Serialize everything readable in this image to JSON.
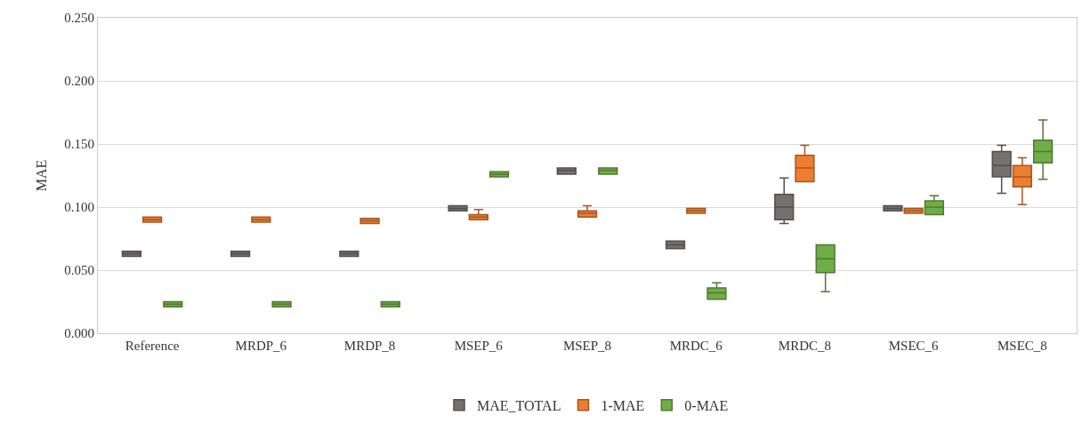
{
  "chart_data": {
    "type": "box",
    "ylabel": "MAE",
    "categories": [
      "Reference",
      "MRDP_6",
      "MRDP_8",
      "MSEP_6",
      "MSEP_8",
      "MRDC_6",
      "MRDC_8",
      "MSEC_6",
      "MSEC_8"
    ],
    "ylim": [
      0,
      0.25
    ],
    "yticks": [
      {
        "value": 0,
        "label": "0.000"
      },
      {
        "value": 0.05,
        "label": "0.050"
      },
      {
        "value": 0.1,
        "label": "0.100"
      },
      {
        "value": 0.15,
        "label": "0.150"
      },
      {
        "value": 0.2,
        "label": "0.200"
      },
      {
        "value": 0.25,
        "label": "0.250"
      }
    ],
    "grid": "y",
    "legend": "bottom",
    "series": [
      {
        "name": "MAE_TOTAL",
        "color": "#767171",
        "boxes": [
          {
            "low": 0.061,
            "q1": 0.061,
            "median": 0.063,
            "q3": 0.065,
            "high": 0.065
          },
          {
            "low": 0.061,
            "q1": 0.061,
            "median": 0.063,
            "q3": 0.065,
            "high": 0.065
          },
          {
            "low": 0.061,
            "q1": 0.061,
            "median": 0.063,
            "q3": 0.065,
            "high": 0.065
          },
          {
            "low": 0.097,
            "q1": 0.097,
            "median": 0.099,
            "q3": 0.101,
            "high": 0.101
          },
          {
            "low": 0.126,
            "q1": 0.126,
            "median": 0.129,
            "q3": 0.131,
            "high": 0.131
          },
          {
            "low": 0.067,
            "q1": 0.067,
            "median": 0.07,
            "q3": 0.073,
            "high": 0.073
          },
          {
            "low": 0.087,
            "q1": 0.09,
            "median": 0.1,
            "q3": 0.11,
            "high": 0.123
          },
          {
            "low": 0.097,
            "q1": 0.097,
            "median": 0.099,
            "q3": 0.101,
            "high": 0.101
          },
          {
            "low": 0.111,
            "q1": 0.124,
            "median": 0.133,
            "q3": 0.144,
            "high": 0.149
          }
        ]
      },
      {
        "name": "1-MAE",
        "color": "#ed7d31",
        "boxes": [
          {
            "low": 0.088,
            "q1": 0.088,
            "median": 0.09,
            "q3": 0.092,
            "high": 0.092
          },
          {
            "low": 0.088,
            "q1": 0.088,
            "median": 0.09,
            "q3": 0.092,
            "high": 0.092
          },
          {
            "low": 0.087,
            "q1": 0.087,
            "median": 0.089,
            "q3": 0.091,
            "high": 0.091
          },
          {
            "low": 0.09,
            "q1": 0.09,
            "median": 0.092,
            "q3": 0.094,
            "high": 0.098
          },
          {
            "low": 0.092,
            "q1": 0.092,
            "median": 0.095,
            "q3": 0.097,
            "high": 0.101
          },
          {
            "low": 0.095,
            "q1": 0.095,
            "median": 0.097,
            "q3": 0.099,
            "high": 0.099
          },
          {
            "low": 0.12,
            "q1": 0.12,
            "median": 0.131,
            "q3": 0.141,
            "high": 0.149
          },
          {
            "low": 0.095,
            "q1": 0.095,
            "median": 0.097,
            "q3": 0.099,
            "high": 0.099
          },
          {
            "low": 0.102,
            "q1": 0.116,
            "median": 0.124,
            "q3": 0.133,
            "high": 0.139
          }
        ]
      },
      {
        "name": "0-MAE",
        "color": "#70ad47",
        "boxes": [
          {
            "low": 0.021,
            "q1": 0.021,
            "median": 0.023,
            "q3": 0.025,
            "high": 0.025
          },
          {
            "low": 0.021,
            "q1": 0.021,
            "median": 0.023,
            "q3": 0.025,
            "high": 0.025
          },
          {
            "low": 0.021,
            "q1": 0.021,
            "median": 0.023,
            "q3": 0.025,
            "high": 0.025
          },
          {
            "low": 0.124,
            "q1": 0.124,
            "median": 0.126,
            "q3": 0.128,
            "high": 0.128
          },
          {
            "low": 0.126,
            "q1": 0.126,
            "median": 0.129,
            "q3": 0.131,
            "high": 0.131
          },
          {
            "low": 0.027,
            "q1": 0.027,
            "median": 0.032,
            "q3": 0.036,
            "high": 0.04
          },
          {
            "low": 0.033,
            "q1": 0.048,
            "median": 0.059,
            "q3": 0.07,
            "high": 0.07
          },
          {
            "low": 0.094,
            "q1": 0.094,
            "median": 0.1,
            "q3": 0.105,
            "high": 0.109
          },
          {
            "low": 0.122,
            "q1": 0.135,
            "median": 0.144,
            "q3": 0.153,
            "high": 0.169
          }
        ]
      }
    ]
  }
}
